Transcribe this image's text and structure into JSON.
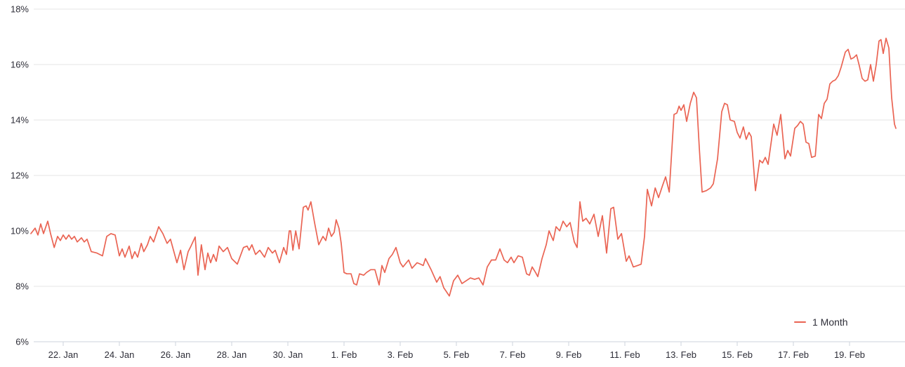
{
  "chart_data": {
    "type": "line",
    "title": "",
    "xlabel": "",
    "ylabel": "",
    "x_unit": "days since Jan 21",
    "grid": "horizontal",
    "legend_position": "bottom-right",
    "y_axis": {
      "min": 6,
      "max": 18,
      "unit": "%",
      "ticks": [
        {
          "value": 18,
          "label": "18%"
        },
        {
          "value": 16,
          "label": "16%"
        },
        {
          "value": 14,
          "label": "14%"
        },
        {
          "value": 12,
          "label": "12%"
        },
        {
          "value": 10,
          "label": "10%"
        },
        {
          "value": 8,
          "label": "8%"
        },
        {
          "value": 6,
          "label": "6%"
        }
      ]
    },
    "x_axis": {
      "min": -0.2,
      "max": 31,
      "ticks": [
        {
          "pos": 1,
          "label": "22. Jan"
        },
        {
          "pos": 3,
          "label": "24. Jan"
        },
        {
          "pos": 5,
          "label": "26. Jan"
        },
        {
          "pos": 7,
          "label": "28. Jan"
        },
        {
          "pos": 9,
          "label": "30. Jan"
        },
        {
          "pos": 11,
          "label": "1. Feb"
        },
        {
          "pos": 13,
          "label": "3. Feb"
        },
        {
          "pos": 15,
          "label": "5. Feb"
        },
        {
          "pos": 17,
          "label": "7. Feb"
        },
        {
          "pos": 19,
          "label": "9. Feb"
        },
        {
          "pos": 21,
          "label": "11. Feb"
        },
        {
          "pos": 23,
          "label": "13. Feb"
        },
        {
          "pos": 25,
          "label": "15. Feb"
        },
        {
          "pos": 27,
          "label": "17. Feb"
        },
        {
          "pos": 29,
          "label": "19. Feb"
        }
      ]
    },
    "series": [
      {
        "name": "1 Month",
        "color": "#ea6453",
        "points": [
          [
            -0.15,
            9.9
          ],
          [
            0,
            10.1
          ],
          [
            0.1,
            9.85
          ],
          [
            0.2,
            10.25
          ],
          [
            0.3,
            9.9
          ],
          [
            0.45,
            10.35
          ],
          [
            0.55,
            9.9
          ],
          [
            0.68,
            9.4
          ],
          [
            0.8,
            9.8
          ],
          [
            0.9,
            9.65
          ],
          [
            1.0,
            9.85
          ],
          [
            1.1,
            9.7
          ],
          [
            1.2,
            9.85
          ],
          [
            1.3,
            9.7
          ],
          [
            1.4,
            9.8
          ],
          [
            1.5,
            9.6
          ],
          [
            1.65,
            9.75
          ],
          [
            1.75,
            9.6
          ],
          [
            1.85,
            9.7
          ],
          [
            2.0,
            9.25
          ],
          [
            2.2,
            9.2
          ],
          [
            2.4,
            9.1
          ],
          [
            2.55,
            9.8
          ],
          [
            2.7,
            9.9
          ],
          [
            2.85,
            9.85
          ],
          [
            3.0,
            9.1
          ],
          [
            3.1,
            9.35
          ],
          [
            3.2,
            9.05
          ],
          [
            3.35,
            9.45
          ],
          [
            3.45,
            9.0
          ],
          [
            3.55,
            9.25
          ],
          [
            3.65,
            9.05
          ],
          [
            3.78,
            9.55
          ],
          [
            3.87,
            9.25
          ],
          [
            4.0,
            9.5
          ],
          [
            4.1,
            9.8
          ],
          [
            4.22,
            9.6
          ],
          [
            4.4,
            10.15
          ],
          [
            4.55,
            9.9
          ],
          [
            4.7,
            9.55
          ],
          [
            4.82,
            9.7
          ],
          [
            5.05,
            8.85
          ],
          [
            5.18,
            9.3
          ],
          [
            5.3,
            8.6
          ],
          [
            5.45,
            9.25
          ],
          [
            5.55,
            9.45
          ],
          [
            5.7,
            9.78
          ],
          [
            5.8,
            8.4
          ],
          [
            5.92,
            9.5
          ],
          [
            6.05,
            8.6
          ],
          [
            6.15,
            9.2
          ],
          [
            6.25,
            8.85
          ],
          [
            6.35,
            9.15
          ],
          [
            6.45,
            8.9
          ],
          [
            6.55,
            9.45
          ],
          [
            6.7,
            9.25
          ],
          [
            6.85,
            9.4
          ],
          [
            7.0,
            9.0
          ],
          [
            7.2,
            8.8
          ],
          [
            7.42,
            9.4
          ],
          [
            7.55,
            9.45
          ],
          [
            7.62,
            9.3
          ],
          [
            7.72,
            9.5
          ],
          [
            7.85,
            9.15
          ],
          [
            8.0,
            9.3
          ],
          [
            8.17,
            9.05
          ],
          [
            8.3,
            9.4
          ],
          [
            8.45,
            9.2
          ],
          [
            8.55,
            9.3
          ],
          [
            8.7,
            8.85
          ],
          [
            8.85,
            9.4
          ],
          [
            8.95,
            9.15
          ],
          [
            9.05,
            10.0
          ],
          [
            9.1,
            10.0
          ],
          [
            9.18,
            9.3
          ],
          [
            9.28,
            10.0
          ],
          [
            9.4,
            9.35
          ],
          [
            9.55,
            10.85
          ],
          [
            9.65,
            10.9
          ],
          [
            9.72,
            10.75
          ],
          [
            9.82,
            11.05
          ],
          [
            9.95,
            10.3
          ],
          [
            10.1,
            9.5
          ],
          [
            10.25,
            9.8
          ],
          [
            10.35,
            9.65
          ],
          [
            10.45,
            10.1
          ],
          [
            10.55,
            9.8
          ],
          [
            10.65,
            9.95
          ],
          [
            10.72,
            10.4
          ],
          [
            10.82,
            10.1
          ],
          [
            10.9,
            9.55
          ],
          [
            11.0,
            8.5
          ],
          [
            11.1,
            8.45
          ],
          [
            11.25,
            8.45
          ],
          [
            11.35,
            8.1
          ],
          [
            11.45,
            8.05
          ],
          [
            11.55,
            8.45
          ],
          [
            11.7,
            8.4
          ],
          [
            11.8,
            8.5
          ],
          [
            11.95,
            8.6
          ],
          [
            12.1,
            8.6
          ],
          [
            12.25,
            8.05
          ],
          [
            12.35,
            8.75
          ],
          [
            12.45,
            8.5
          ],
          [
            12.6,
            9.0
          ],
          [
            12.72,
            9.15
          ],
          [
            12.85,
            9.4
          ],
          [
            13.0,
            8.85
          ],
          [
            13.1,
            8.7
          ],
          [
            13.3,
            8.95
          ],
          [
            13.42,
            8.65
          ],
          [
            13.6,
            8.85
          ],
          [
            13.72,
            8.8
          ],
          [
            13.82,
            8.75
          ],
          [
            13.9,
            9.0
          ],
          [
            14.1,
            8.6
          ],
          [
            14.3,
            8.15
          ],
          [
            14.42,
            8.35
          ],
          [
            14.55,
            7.95
          ],
          [
            14.75,
            7.65
          ],
          [
            14.9,
            8.2
          ],
          [
            15.05,
            8.4
          ],
          [
            15.2,
            8.1
          ],
          [
            15.35,
            8.2
          ],
          [
            15.5,
            8.3
          ],
          [
            15.65,
            8.25
          ],
          [
            15.8,
            8.3
          ],
          [
            15.95,
            8.05
          ],
          [
            16.1,
            8.7
          ],
          [
            16.25,
            8.95
          ],
          [
            16.4,
            8.95
          ],
          [
            16.55,
            9.35
          ],
          [
            16.7,
            8.95
          ],
          [
            16.82,
            8.85
          ],
          [
            16.95,
            9.05
          ],
          [
            17.05,
            8.85
          ],
          [
            17.2,
            9.1
          ],
          [
            17.35,
            9.05
          ],
          [
            17.5,
            8.45
          ],
          [
            17.6,
            8.4
          ],
          [
            17.7,
            8.7
          ],
          [
            17.82,
            8.5
          ],
          [
            17.9,
            8.35
          ],
          [
            18.05,
            9.0
          ],
          [
            18.2,
            9.5
          ],
          [
            18.3,
            10.0
          ],
          [
            18.45,
            9.65
          ],
          [
            18.55,
            10.15
          ],
          [
            18.68,
            10.0
          ],
          [
            18.8,
            10.35
          ],
          [
            18.93,
            10.15
          ],
          [
            19.05,
            10.3
          ],
          [
            19.2,
            9.6
          ],
          [
            19.3,
            9.4
          ],
          [
            19.4,
            11.05
          ],
          [
            19.5,
            10.35
          ],
          [
            19.62,
            10.45
          ],
          [
            19.75,
            10.25
          ],
          [
            19.9,
            10.6
          ],
          [
            20.05,
            9.8
          ],
          [
            20.2,
            10.55
          ],
          [
            20.35,
            9.2
          ],
          [
            20.5,
            10.8
          ],
          [
            20.6,
            10.85
          ],
          [
            20.75,
            9.7
          ],
          [
            20.88,
            9.9
          ],
          [
            21.05,
            8.9
          ],
          [
            21.15,
            9.1
          ],
          [
            21.3,
            8.7
          ],
          [
            21.45,
            8.75
          ],
          [
            21.58,
            8.8
          ],
          [
            21.7,
            9.8
          ],
          [
            21.8,
            11.5
          ],
          [
            21.95,
            10.9
          ],
          [
            22.08,
            11.55
          ],
          [
            22.2,
            11.2
          ],
          [
            22.33,
            11.6
          ],
          [
            22.45,
            11.95
          ],
          [
            22.58,
            11.4
          ],
          [
            22.75,
            14.2
          ],
          [
            22.85,
            14.25
          ],
          [
            22.93,
            14.5
          ],
          [
            23.0,
            14.35
          ],
          [
            23.1,
            14.55
          ],
          [
            23.2,
            13.95
          ],
          [
            23.33,
            14.6
          ],
          [
            23.45,
            15.0
          ],
          [
            23.55,
            14.8
          ],
          [
            23.65,
            13.0
          ],
          [
            23.75,
            11.4
          ],
          [
            23.9,
            11.45
          ],
          [
            24.05,
            11.55
          ],
          [
            24.15,
            11.7
          ],
          [
            24.3,
            12.6
          ],
          [
            24.45,
            14.3
          ],
          [
            24.55,
            14.6
          ],
          [
            24.65,
            14.55
          ],
          [
            24.75,
            14.0
          ],
          [
            24.9,
            13.95
          ],
          [
            25.0,
            13.55
          ],
          [
            25.1,
            13.35
          ],
          [
            25.22,
            13.75
          ],
          [
            25.32,
            13.3
          ],
          [
            25.42,
            13.55
          ],
          [
            25.5,
            13.4
          ],
          [
            25.65,
            11.45
          ],
          [
            25.8,
            12.55
          ],
          [
            25.9,
            12.45
          ],
          [
            26.0,
            12.65
          ],
          [
            26.1,
            12.4
          ],
          [
            26.3,
            13.85
          ],
          [
            26.42,
            13.45
          ],
          [
            26.55,
            14.2
          ],
          [
            26.7,
            12.6
          ],
          [
            26.8,
            12.9
          ],
          [
            26.9,
            12.7
          ],
          [
            27.05,
            13.7
          ],
          [
            27.15,
            13.8
          ],
          [
            27.25,
            13.95
          ],
          [
            27.35,
            13.85
          ],
          [
            27.45,
            13.2
          ],
          [
            27.55,
            13.15
          ],
          [
            27.65,
            12.65
          ],
          [
            27.78,
            12.7
          ],
          [
            27.9,
            14.2
          ],
          [
            28.0,
            14.05
          ],
          [
            28.1,
            14.6
          ],
          [
            28.2,
            14.75
          ],
          [
            28.3,
            15.3
          ],
          [
            28.4,
            15.4
          ],
          [
            28.5,
            15.45
          ],
          [
            28.6,
            15.6
          ],
          [
            28.7,
            15.9
          ],
          [
            28.85,
            16.45
          ],
          [
            28.95,
            16.55
          ],
          [
            29.05,
            16.2
          ],
          [
            29.15,
            16.25
          ],
          [
            29.25,
            16.35
          ],
          [
            29.35,
            15.95
          ],
          [
            29.45,
            15.5
          ],
          [
            29.55,
            15.4
          ],
          [
            29.65,
            15.45
          ],
          [
            29.75,
            16.0
          ],
          [
            29.85,
            15.4
          ],
          [
            29.95,
            16.0
          ],
          [
            30.05,
            16.85
          ],
          [
            30.12,
            16.9
          ],
          [
            30.2,
            16.4
          ],
          [
            30.3,
            16.95
          ],
          [
            30.4,
            16.6
          ],
          [
            30.5,
            14.8
          ],
          [
            30.6,
            13.85
          ],
          [
            30.65,
            13.7
          ]
        ]
      }
    ],
    "colors": {
      "series": "#ea6453",
      "gridline": "#e6e6e6",
      "axis": "#ccd3dc",
      "label_text": "#2e2e38",
      "background": "#ffffff"
    }
  }
}
